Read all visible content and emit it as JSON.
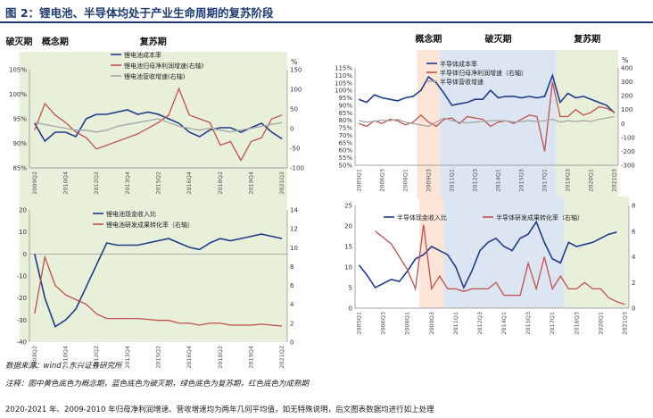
{
  "title": "图 2：锂电池、半导体均处于产业生命周期的复苏阶段",
  "phases": {
    "concept": "概念期",
    "destroy": "破灭期",
    "recovery": "复苏期"
  },
  "footnotes": {
    "source": "数据来源：wind，东兴证券研究所",
    "note": "注释：图中黄色底色为概念期，蓝色底色为破灭期，绿色底色为复苏期，红色底色为成熟期",
    "extra": "2020-2021 年、2009-2010 年归母净利润增速、营收增速均为两年几何平均值，如无特殊说明，后文图表数据均进行如上处理"
  },
  "colors": {
    "blue": "#1F3B8A",
    "red": "#C0504D",
    "gray": "#A6A6A6",
    "concept_bg": "#FCE4D6",
    "destroy_bg": "#DCE6F2",
    "recovery_bg": "#E8F0DA"
  },
  "chart_data": [
    {
      "id": "battery_top",
      "type": "line",
      "x": [
        "2009Q2",
        "2009Q4",
        "2010Q2",
        "2010Q4",
        "2011Q2",
        "2011Q4",
        "2012Q2",
        "2012Q4",
        "2013Q2",
        "2013Q4",
        "2014Q2",
        "2014Q4",
        "2015Q2",
        "2015Q4",
        "2016Q2",
        "2016Q4",
        "2017Q2",
        "2017Q4",
        "2018Q2",
        "2018Q4",
        "2019Q2",
        "2019Q4",
        "2020Q2",
        "2020Q4",
        "2021Q2"
      ],
      "xticks": [
        "2009Q2",
        "2010Q1",
        "2010Q4",
        "2011Q3",
        "2012Q2",
        "2013Q1",
        "2013Q4",
        "2014Q3",
        "2015Q2",
        "2016Q1",
        "2016Q4",
        "2017Q3",
        "2018Q2",
        "2019Q1",
        "2019Q4",
        "2020Q3",
        "2021Q2"
      ],
      "y_left": {
        "ticks": [
          "85%",
          "90%",
          "95%",
          "100%",
          "105%"
        ],
        "ylim": [
          85,
          107
        ]
      },
      "y_right": {
        "ticks": [
          "-100",
          "-50",
          "0",
          "50",
          "100",
          "150"
        ],
        "ylim": [
          -100,
          160
        ],
        "unit": "%"
      },
      "phases": [
        {
          "name": "concept",
          "from": "2012Q2",
          "to": "2016Q1"
        },
        {
          "name": "destroy",
          "from": "2016Q1",
          "to": "2019Q1"
        },
        {
          "name": "recovery",
          "from": "2019Q1",
          "to": "2021Q2"
        }
      ],
      "series": [
        {
          "name": "锂电池成本率",
          "axis": "left",
          "color": "blue",
          "values": [
            95,
            91,
            93,
            93,
            92,
            96,
            97,
            97,
            97.5,
            98,
            97,
            97.5,
            97,
            96,
            95,
            93,
            92,
            93.5,
            94,
            94,
            93,
            94,
            95,
            93,
            91.5
          ]
        },
        {
          "name": "锂电池归母净利润增速(右轴)",
          "axis": "right",
          "color": "red",
          "values": [
            0,
            70,
            40,
            20,
            -5,
            -20,
            -50,
            -40,
            -30,
            -20,
            -10,
            5,
            20,
            40,
            110,
            40,
            30,
            20,
            -40,
            -30,
            -80,
            -30,
            -20,
            30,
            40
          ]
        },
        {
          "name": "锂电池营收增速(右轴)",
          "axis": "right",
          "color": "gray",
          "values": [
            20,
            15,
            10,
            5,
            0,
            0,
            -5,
            0,
            10,
            15,
            20,
            25,
            30,
            20,
            10,
            5,
            0,
            5,
            0,
            -5,
            0,
            5,
            10,
            15,
            20
          ]
        }
      ]
    },
    {
      "id": "battery_bottom",
      "type": "line",
      "x": [
        "2009Q2",
        "2009Q4",
        "2010Q2",
        "2010Q4",
        "2011Q2",
        "2011Q4",
        "2012Q2",
        "2012Q4",
        "2013Q2",
        "2013Q4",
        "2014Q2",
        "2014Q4",
        "2015Q2",
        "2015Q4",
        "2016Q2",
        "2016Q4",
        "2017Q2",
        "2017Q4",
        "2018Q2",
        "2018Q4",
        "2019Q2",
        "2019Q4",
        "2020Q2",
        "2020Q4",
        "2021Q2"
      ],
      "xticks": [
        "2009Q2",
        "2010Q1",
        "2010Q4",
        "2011Q3",
        "2012Q2",
        "2013Q1",
        "2013Q4",
        "2014Q3",
        "2015Q2",
        "2016Q1",
        "2016Q4",
        "2017Q3",
        "2018Q2",
        "2019Q1",
        "2019Q4",
        "2020Q3",
        "2021Q2"
      ],
      "y_left": {
        "ticks": [
          "-40",
          "-30",
          "-20",
          "-10",
          "0",
          "10",
          "20"
        ],
        "ylim": [
          -40,
          20
        ]
      },
      "y_right": {
        "ticks": [
          "0",
          "2",
          "4",
          "6",
          "8",
          "10",
          "12",
          "14"
        ],
        "ylim": [
          0,
          14
        ]
      },
      "phases": [
        {
          "name": "concept",
          "from": "2012Q2",
          "to": "2016Q1"
        },
        {
          "name": "destroy",
          "from": "2016Q1",
          "to": "2019Q1"
        },
        {
          "name": "recovery",
          "from": "2019Q1",
          "to": "2021Q2"
        }
      ],
      "series": [
        {
          "name": "锂电池现金收入比",
          "axis": "left",
          "color": "blue",
          "values": [
            0,
            -20,
            -33,
            -30,
            -25,
            -15,
            -5,
            5,
            4,
            4,
            4,
            5,
            6,
            7,
            5,
            3,
            2,
            5,
            7,
            6,
            7,
            8,
            9,
            8,
            7
          ]
        },
        {
          "name": "锂电池研发成果转化率（右轴）",
          "axis": "right",
          "color": "red",
          "values": [
            3,
            9,
            6,
            5,
            4.5,
            4,
            3,
            2.5,
            2.5,
            2.5,
            2.5,
            2.4,
            2.3,
            2.3,
            2,
            2,
            1.8,
            2,
            2,
            1.8,
            1.8,
            1.8,
            1.9,
            1.8,
            1.7
          ]
        }
      ]
    },
    {
      "id": "semi_top",
      "type": "line",
      "x": [
        "2005Q1",
        "2005Q3",
        "2006Q1",
        "2006Q3",
        "2007Q1",
        "2007Q3",
        "2008Q1",
        "2008Q3",
        "2009Q1",
        "2009Q3",
        "2010Q1",
        "2010Q3",
        "2011Q1",
        "2011Q3",
        "2012Q1",
        "2012Q3",
        "2013Q1",
        "2013Q3",
        "2014Q1",
        "2014Q3",
        "2015Q1",
        "2015Q3",
        "2016Q1",
        "2016Q3",
        "2017Q1",
        "2017Q3",
        "2018Q1",
        "2018Q3",
        "2019Q1",
        "2019Q3",
        "2020Q1",
        "2020Q3",
        "2021Q1",
        "2021Q3"
      ],
      "xticks": [
        "2005Q1",
        "2005Q4",
        "2006Q3",
        "2007Q2",
        "2008Q1",
        "2008Q4",
        "2009Q3",
        "2010Q2",
        "2011Q1",
        "2011Q4",
        "2012Q3",
        "2013Q2",
        "2014Q1",
        "2014Q4",
        "2015Q3",
        "2016Q2",
        "2017Q1",
        "2017Q4",
        "2018Q3",
        "2019Q2",
        "2020Q1",
        "2020Q4",
        "2021Q3"
      ],
      "y_left": {
        "ticks": [
          "50%",
          "55%",
          "60%",
          "65%",
          "70%",
          "75%",
          "80%",
          "85%",
          "90%",
          "95%",
          "100%",
          "105%",
          "110%",
          "115%"
        ],
        "ylim": [
          50,
          115
        ]
      },
      "y_right": {
        "ticks": [
          "-300",
          "-200",
          "-100",
          "0",
          "100",
          "200",
          "300",
          "400"
        ],
        "ylim": [
          -300,
          400
        ],
        "unit": "%"
      },
      "phases": [
        {
          "name": "concept",
          "from": "2009Q1",
          "to": "2010Q3"
        },
        {
          "name": "destroy",
          "from": "2010Q3",
          "to": "2018Q1"
        },
        {
          "name": "recovery",
          "from": "2018Q1",
          "to": "2021Q3"
        }
      ],
      "series": [
        {
          "name": "半导体成本率",
          "axis": "left",
          "color": "blue",
          "values": [
            94,
            92,
            97,
            95,
            94,
            93,
            95,
            96,
            100,
            109,
            105,
            98,
            90,
            91,
            92,
            94,
            94,
            100,
            95,
            96,
            96,
            95,
            96,
            95,
            96,
            110,
            92,
            98,
            95,
            96,
            94,
            92,
            90,
            85
          ]
        },
        {
          "name": "半导体归母净利润增速（右轴）",
          "axis": "right",
          "color": "red",
          "values": [
            0,
            -20,
            20,
            0,
            30,
            20,
            -10,
            10,
            60,
            10,
            -20,
            30,
            40,
            0,
            50,
            40,
            30,
            -20,
            10,
            20,
            0,
            30,
            60,
            50,
            -200,
            300,
            50,
            50,
            100,
            60,
            80,
            120,
            110,
            80
          ]
        },
        {
          "name": "半导体营收增速",
          "axis": "right",
          "color": "gray",
          "values": [
            20,
            10,
            15,
            25,
            20,
            30,
            10,
            0,
            -10,
            -20,
            10,
            40,
            20,
            10,
            5,
            10,
            15,
            20,
            20,
            20,
            10,
            15,
            20,
            15,
            20,
            30,
            10,
            20,
            15,
            20,
            15,
            30,
            40,
            50
          ]
        }
      ]
    },
    {
      "id": "semi_bottom",
      "type": "line",
      "x": [
        "2005Q1",
        "2005Q3",
        "2006Q1",
        "2006Q3",
        "2007Q1",
        "2007Q3",
        "2008Q1",
        "2008Q3",
        "2009Q1",
        "2009Q3",
        "2010Q1",
        "2010Q3",
        "2011Q1",
        "2011Q3",
        "2012Q1",
        "2012Q3",
        "2013Q1",
        "2013Q3",
        "2014Q1",
        "2014Q3",
        "2015Q1",
        "2015Q3",
        "2016Q1",
        "2016Q3",
        "2017Q1",
        "2017Q3",
        "2018Q1",
        "2018Q3",
        "2019Q1",
        "2019Q3",
        "2020Q1",
        "2020Q3",
        "2021Q1",
        "2021Q3"
      ],
      "xticks": [
        "2005Q1",
        "2005Q4",
        "2006Q3",
        "2007Q2",
        "2008Q1",
        "2008Q4",
        "2009Q3",
        "2010Q2",
        "2011Q1",
        "2011Q4",
        "2012Q3",
        "2013Q2",
        "2014Q1",
        "2014Q4",
        "2015Q3",
        "2016Q2",
        "2017Q1",
        "2017Q4",
        "2018Q3",
        "2019Q2",
        "2020Q1",
        "2020Q4",
        "2021Q3"
      ],
      "y_left": {
        "ticks": [
          "0",
          "5",
          "10",
          "15",
          "20",
          "25"
        ],
        "ylim": [
          0,
          25
        ]
      },
      "y_right": {
        "ticks": [
          "0",
          "2",
          "4",
          "6",
          "8"
        ],
        "ylim": [
          0,
          8
        ]
      },
      "phases": [
        {
          "name": "concept",
          "from": "2009Q1",
          "to": "2010Q3"
        },
        {
          "name": "destroy",
          "from": "2010Q3",
          "to": "2018Q1"
        },
        {
          "name": "recovery",
          "from": "2018Q1",
          "to": "2021Q3"
        }
      ],
      "series": [
        {
          "name": "半导体现金收入比",
          "axis": "left",
          "color": "blue",
          "values": [
            10.5,
            8,
            5,
            6,
            7,
            6.5,
            9,
            12,
            13,
            15,
            14,
            13,
            10,
            5,
            9,
            14,
            16,
            17,
            15,
            14,
            17,
            18,
            21,
            16,
            12,
            11,
            16,
            15,
            15.5,
            16,
            17,
            18,
            18.5,
            null
          ]
        },
        {
          "name": "半导体研发成果转化率（右轴）",
          "axis": "right",
          "color": "red",
          "values": [
            null,
            null,
            6,
            5.5,
            5,
            4,
            3,
            1.5,
            6.5,
            1.5,
            2.5,
            1.5,
            1.5,
            1.3,
            1.5,
            1.5,
            1.5,
            2,
            1,
            1,
            1,
            3.5,
            1.5,
            4,
            1.5,
            2.5,
            1.5,
            1.5,
            2,
            1.5,
            1.5,
            0.8,
            0.5,
            0.3
          ]
        }
      ]
    }
  ]
}
